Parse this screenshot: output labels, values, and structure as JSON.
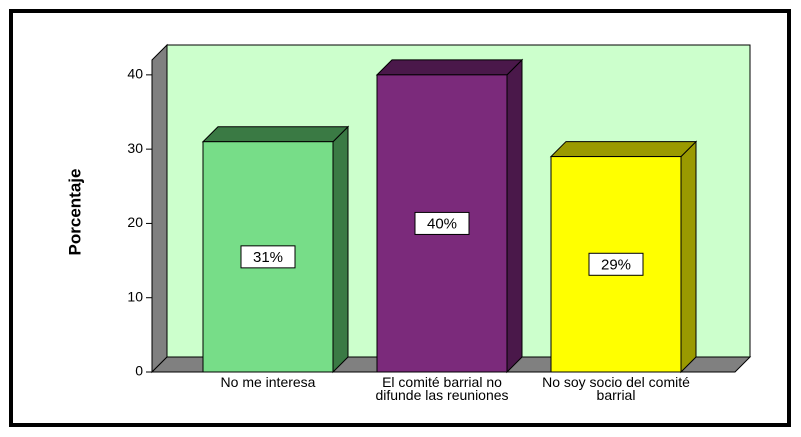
{
  "chart_data": {
    "type": "bar3d",
    "y_label": "Porcentaje",
    "categories": [
      "No me interesa",
      "El comité barrial no difunde las reuniones",
      "No soy socio del comité barrial"
    ],
    "values": [
      31,
      40,
      29
    ],
    "value_labels": [
      "31%",
      "40%",
      "29%"
    ],
    "colors": [
      "#77dd88",
      "#7b2a7b",
      "#ffff00"
    ],
    "side_colors": [
      "#3a7a44",
      "#4a184a",
      "#9a9a00"
    ],
    "wall_color": "#ccffcc",
    "ylim": [
      0,
      42
    ],
    "yticks": [
      0,
      10,
      20,
      30,
      40
    ]
  }
}
